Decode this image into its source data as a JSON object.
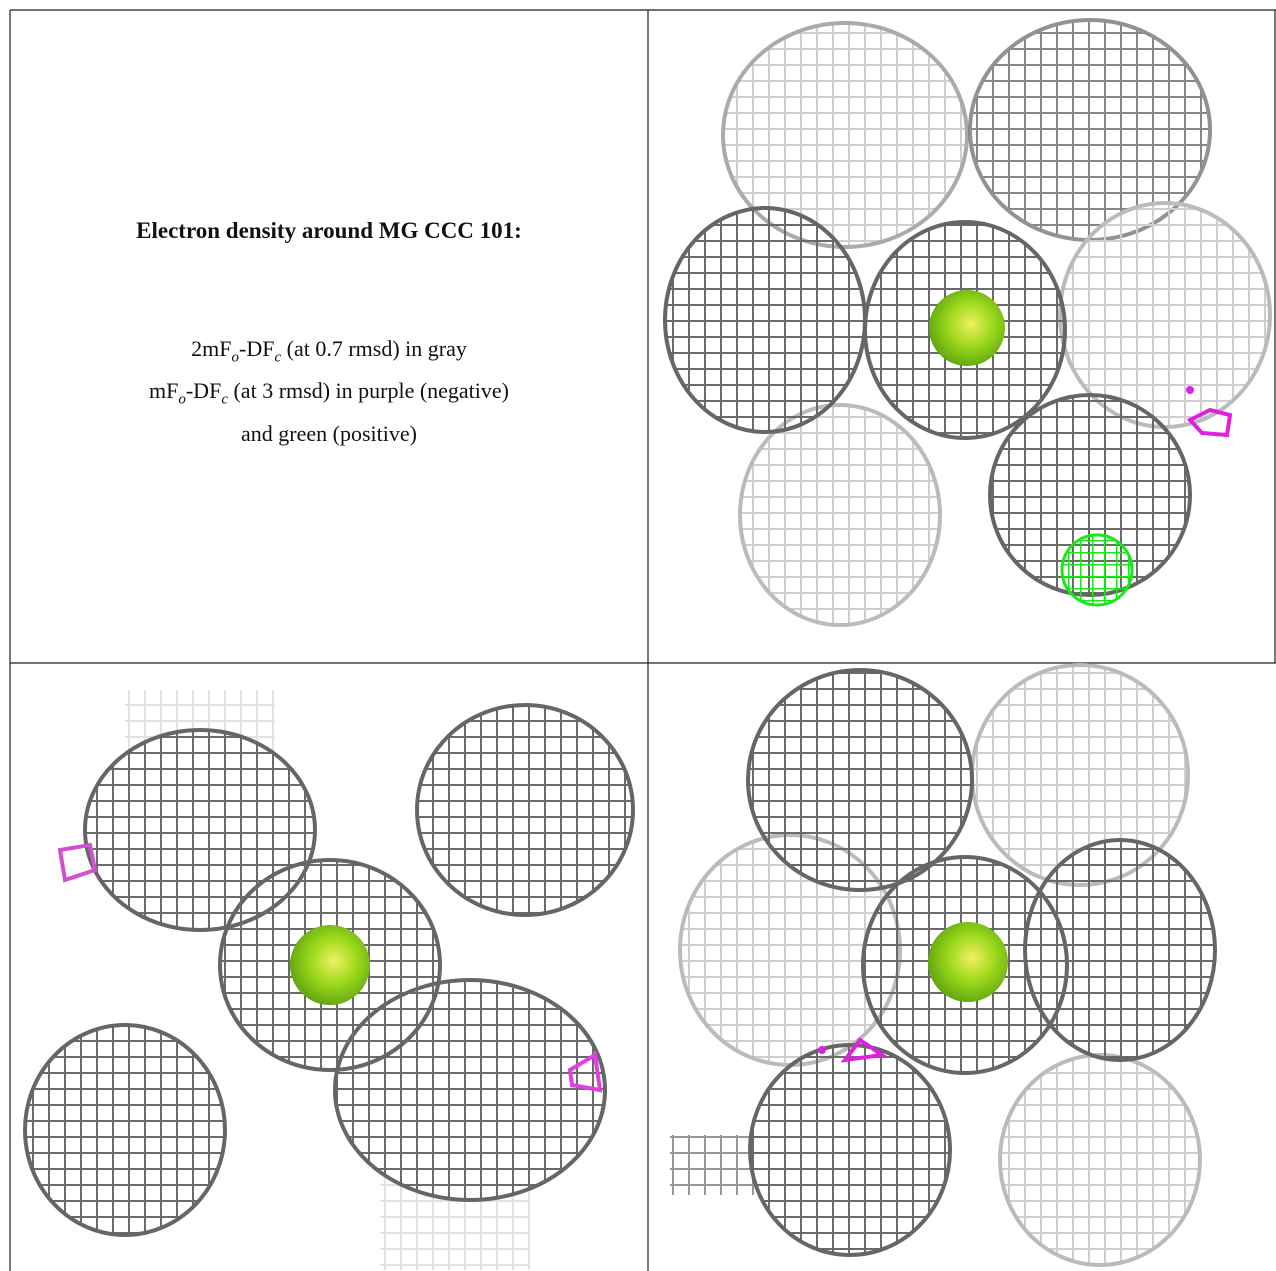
{
  "header": {
    "title": "Electron density around MG CCC 101:"
  },
  "legend": {
    "lines": [
      {
        "parts": [
          "2mF",
          "o",
          "-DF",
          "c",
          " (at 0.7 rmsd) in gray"
        ]
      },
      {
        "parts": [
          "mF",
          "o",
          "-DF",
          "c",
          " (at 3 rmsd) in purple (negative)"
        ]
      },
      {
        "parts": [
          "and green (positive)"
        ]
      }
    ]
  }
}
